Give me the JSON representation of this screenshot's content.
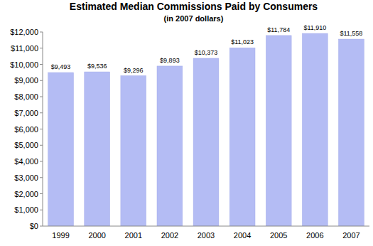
{
  "chart_data": {
    "type": "bar",
    "title": "Estimated Median Commissions Paid by Consumers",
    "subtitle": "(in 2007 dollars)",
    "categories": [
      "1999",
      "2000",
      "2001",
      "2002",
      "2003",
      "2004",
      "2005",
      "2006",
      "2007"
    ],
    "values": [
      9493,
      9536,
      9296,
      9893,
      10373,
      11023,
      11784,
      11910,
      11558
    ],
    "value_labels": [
      "$9,493",
      "$9,536",
      "$9,296",
      "$9,893",
      "$10,373",
      "$11,023",
      "$11,784",
      "$11,910",
      "$11,558"
    ],
    "data_labels": true,
    "color": "#b4bcf4",
    "ylim": [
      0,
      12000
    ],
    "yticks": [
      {
        "value": 0,
        "label": "$0"
      },
      {
        "value": 1000,
        "label": "$1,000"
      },
      {
        "value": 2000,
        "label": "$2,000"
      },
      {
        "value": 3000,
        "label": "$3,000"
      },
      {
        "value": 4000,
        "label": "$4,000"
      },
      {
        "value": 5000,
        "label": "$5,000"
      },
      {
        "value": 6000,
        "label": "$6,000"
      },
      {
        "value": 7000,
        "label": "$7,000"
      },
      {
        "value": 8000,
        "label": "$8,000"
      },
      {
        "value": 9000,
        "label": "$9,000"
      },
      {
        "value": 10000,
        "label": "$10,000"
      },
      {
        "value": 11000,
        "label": "$11,000"
      },
      {
        "value": 12000,
        "label": "$12,000"
      }
    ],
    "grid": false
  }
}
